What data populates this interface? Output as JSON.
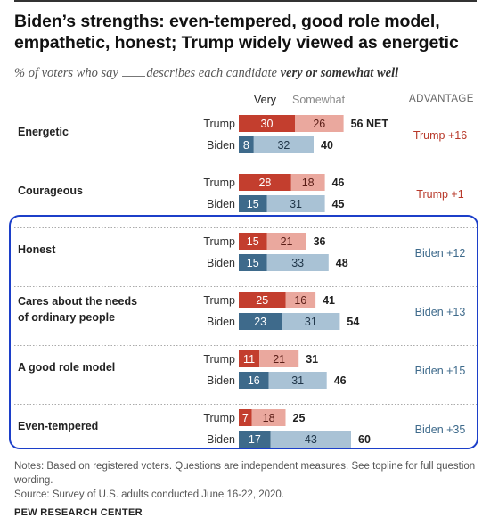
{
  "title": "Biden’s strengths: even-tempered, good role model, empathetic, honest; Trump widely viewed as energetic",
  "subtitle": {
    "pre": "% of voters who say",
    "mid": "describes each candidate",
    "emph": "very or somewhat well"
  },
  "headers": {
    "very": "Very",
    "somewhat": "Somewhat",
    "advantage": "ADVANTAGE"
  },
  "chart_data": {
    "type": "bar",
    "stacked": true,
    "orientation": "horizontal",
    "series_labels": [
      "Very",
      "Somewhat"
    ],
    "colors": {
      "trump_very": "#c33e2e",
      "trump_somewhat": "#eaa89e",
      "biden_very": "#3e6a8b",
      "biden_somewhat": "#a9c2d5",
      "trump_adv": "#b8392a",
      "biden_adv": "#3e6a8b"
    },
    "categories": [
      {
        "label": "Energetic",
        "trump": {
          "name": "Trump",
          "very": 30,
          "somewhat": 26,
          "total": "56 NET"
        },
        "biden": {
          "name": "Biden",
          "very": 8,
          "somewhat": 32,
          "total": "40"
        },
        "advantage": "Trump +16",
        "leader": "trump"
      },
      {
        "label": "Courageous",
        "trump": {
          "name": "Trump",
          "very": 28,
          "somewhat": 18,
          "total": "46"
        },
        "biden": {
          "name": "Biden",
          "very": 15,
          "somewhat": 31,
          "total": "45"
        },
        "advantage": "Trump +1",
        "leader": "trump"
      },
      {
        "label": "Honest",
        "trump": {
          "name": "Trump",
          "very": 15,
          "somewhat": 21,
          "total": "36"
        },
        "biden": {
          "name": "Biden",
          "very": 15,
          "somewhat": 33,
          "total": "48"
        },
        "advantage": "Biden +12",
        "leader": "biden"
      },
      {
        "label": "Cares about the needs of ordinary people",
        "label_lines": [
          "Cares about the needs",
          "of ordinary people"
        ],
        "trump": {
          "name": "Trump",
          "very": 25,
          "somewhat": 16,
          "total": "41"
        },
        "biden": {
          "name": "Biden",
          "very": 23,
          "somewhat": 31,
          "total": "54"
        },
        "advantage": "Biden +13",
        "leader": "biden"
      },
      {
        "label": "A good role model",
        "trump": {
          "name": "Trump",
          "very": 11,
          "somewhat": 21,
          "total": "31"
        },
        "biden": {
          "name": "Biden",
          "very": 16,
          "somewhat": 31,
          "total": "46"
        },
        "advantage": "Biden +15",
        "leader": "biden"
      },
      {
        "label": "Even-tempered",
        "trump": {
          "name": "Trump",
          "very": 7,
          "somewhat": 18,
          "total": "25"
        },
        "biden": {
          "name": "Biden",
          "very": 17,
          "somewhat": 43,
          "total": "60"
        },
        "advantage": "Biden +35",
        "leader": "biden"
      }
    ]
  },
  "notes": "Notes: Based on registered voters. Questions are independent measures. See topline for full question wording.",
  "source": "Source: Survey of U.S. adults conducted June 16-22, 2020.",
  "brand": "PEW RESEARCH CENTER"
}
